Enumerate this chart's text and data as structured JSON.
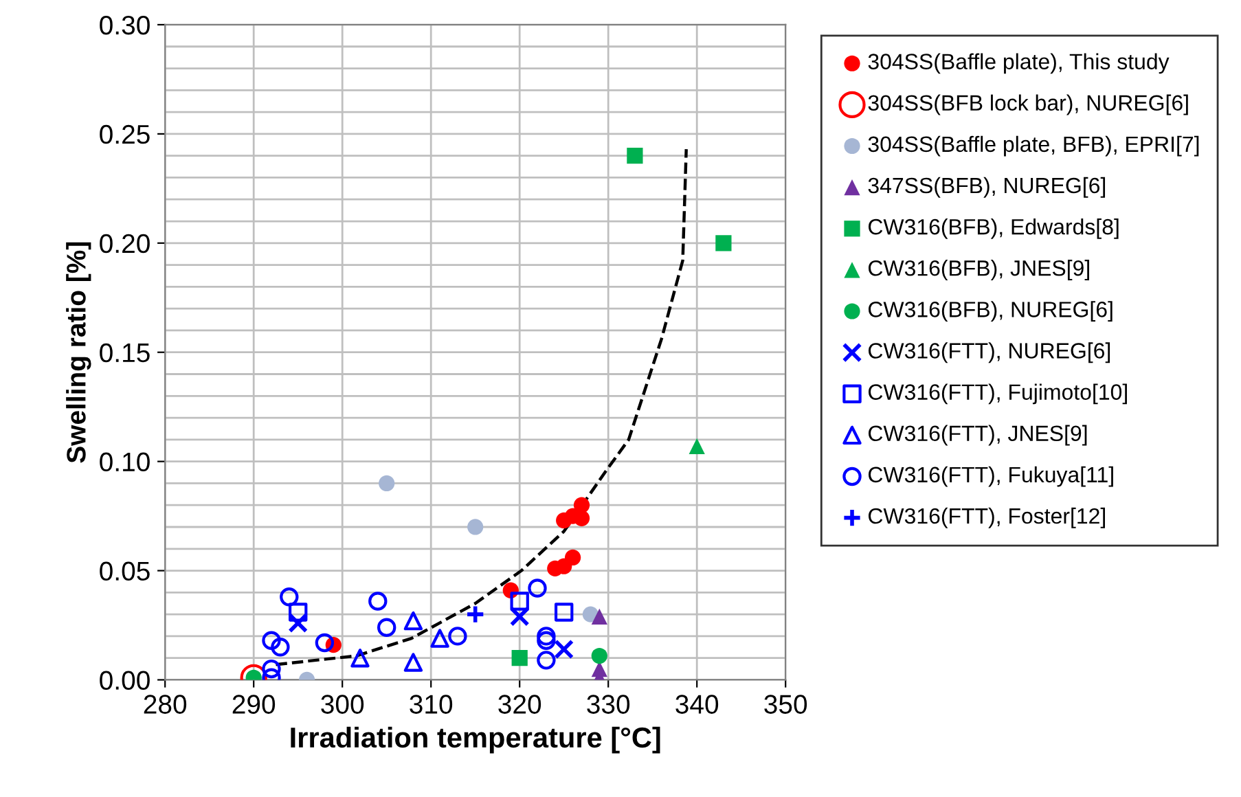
{
  "chart_data": {
    "type": "scatter",
    "xlabel": "Irradiation temperature [°C]",
    "ylabel": "Swelling ratio [%]",
    "xlim": [
      280,
      350
    ],
    "xticks": [
      280,
      290,
      300,
      310,
      320,
      330,
      340,
      350
    ],
    "ylim": [
      0,
      0.3
    ],
    "yticks": [
      {
        "value": 0,
        "label": "0.00"
      },
      {
        "value": 0.01,
        "label": null
      },
      {
        "value": 0.02,
        "label": null
      },
      {
        "value": 0.03,
        "label": null
      },
      {
        "value": 0.04,
        "label": null
      },
      {
        "value": 0.05,
        "label": "0.05"
      },
      {
        "value": 0.06,
        "label": null
      },
      {
        "value": 0.07,
        "label": null
      },
      {
        "value": 0.08,
        "label": null
      },
      {
        "value": 0.09,
        "label": null
      },
      {
        "value": 0.1,
        "label": "0.10"
      },
      {
        "value": 0.11,
        "label": null
      },
      {
        "value": 0.12,
        "label": null
      },
      {
        "value": 0.13,
        "label": null
      },
      {
        "value": 0.14,
        "label": null
      },
      {
        "value": 0.15,
        "label": "0.15"
      },
      {
        "value": 0.16,
        "label": null
      },
      {
        "value": 0.17,
        "label": null
      },
      {
        "value": 0.18,
        "label": null
      },
      {
        "value": 0.19,
        "label": null
      },
      {
        "value": 0.2,
        "label": "0.20"
      },
      {
        "value": 0.21,
        "label": null
      },
      {
        "value": 0.22,
        "label": null
      },
      {
        "value": 0.23,
        "label": null
      },
      {
        "value": 0.24,
        "label": null
      },
      {
        "value": 0.25,
        "label": "0.25"
      },
      {
        "value": 0.26,
        "label": null
      },
      {
        "value": 0.27,
        "label": null
      },
      {
        "value": 0.28,
        "label": null
      },
      {
        "value": 0.29,
        "label": null
      },
      {
        "value": 0.3,
        "label": "0.30"
      }
    ],
    "grid": true,
    "legend": "right",
    "series": [
      {
        "name": "304SS(Baffle plate), This study",
        "color": "#ff0000",
        "marker": "circle",
        "x": [
          299,
          319,
          324,
          325,
          326,
          325,
          326,
          327,
          327
        ],
        "values": [
          0.016,
          0.041,
          0.051,
          0.052,
          0.056,
          0.073,
          0.075,
          0.08,
          0.074
        ]
      },
      {
        "name": "304SS(BFB lock bar), NUREG[6]",
        "color": "#ff0000",
        "marker": "circle-open",
        "x": [
          290
        ],
        "values": [
          0.001
        ]
      },
      {
        "name": "304SS(Baffle plate, BFB), EPRI[7]",
        "color": "#a6b6d4",
        "marker": "circle",
        "x": [
          305,
          315,
          296,
          328
        ],
        "values": [
          0.09,
          0.07,
          0.0,
          0.03
        ]
      },
      {
        "name": "347SS(BFB), NUREG[6]",
        "color": "#7030a0",
        "marker": "triangle",
        "x": [
          329,
          329,
          329
        ],
        "values": [
          0.029,
          0.005,
          0.001
        ]
      },
      {
        "name": "CW316(BFB), Edwards[8]",
        "color": "#00b050",
        "marker": "square",
        "x": [
          333,
          343,
          320
        ],
        "values": [
          0.24,
          0.2,
          0.01
        ]
      },
      {
        "name": "CW316(BFB), JNES[9]",
        "color": "#00b050",
        "marker": "triangle",
        "x": [
          340
        ],
        "values": [
          0.107
        ]
      },
      {
        "name": "CW316(BFB), NUREG[6]",
        "color": "#00b050",
        "marker": "circle",
        "x": [
          290,
          329
        ],
        "values": [
          0.001,
          0.011
        ]
      },
      {
        "name": "CW316(FTT), NUREG[6]",
        "color": "#0000ff",
        "marker": "cross",
        "x": [
          295,
          320,
          325
        ],
        "values": [
          0.026,
          0.029,
          0.014
        ]
      },
      {
        "name": "CW316(FTT), Fujimoto[10]",
        "color": "#0000ff",
        "marker": "square-open",
        "x": [
          295,
          320,
          325
        ],
        "values": [
          0.031,
          0.036,
          0.031
        ]
      },
      {
        "name": "CW316(FTT), JNES[9]",
        "color": "#0000ff",
        "marker": "triangle-open",
        "x": [
          302,
          308,
          308,
          311
        ],
        "values": [
          0.01,
          0.027,
          0.008,
          0.019
        ]
      },
      {
        "name": "CW316(FTT), Fukuya[11]",
        "color": "#0000ff",
        "marker": "circle-open",
        "x": [
          294,
          292,
          293,
          298,
          292,
          292,
          304,
          305,
          313,
          322,
          323,
          323,
          323
        ],
        "values": [
          0.038,
          0.018,
          0.015,
          0.017,
          0.005,
          0.001,
          0.036,
          0.024,
          0.02,
          0.042,
          0.02,
          0.018,
          0.009
        ]
      },
      {
        "name": "CW316(FTT), Foster[12]",
        "color": "#0000ff",
        "marker": "plus",
        "x": [
          315
        ],
        "values": [
          0.03
        ]
      },
      {
        "type": "line",
        "color": "#000000",
        "line_style": "dashed",
        "x": [
          292.5,
          301.6,
          307.8,
          315,
          320.2,
          325,
          329.8,
          332.3,
          336,
          338.4,
          338.8
        ],
        "values": [
          0.007,
          0.011,
          0.019,
          0.035,
          0.05,
          0.068,
          0.096,
          0.11,
          0.156,
          0.192,
          0.243
        ]
      }
    ]
  }
}
